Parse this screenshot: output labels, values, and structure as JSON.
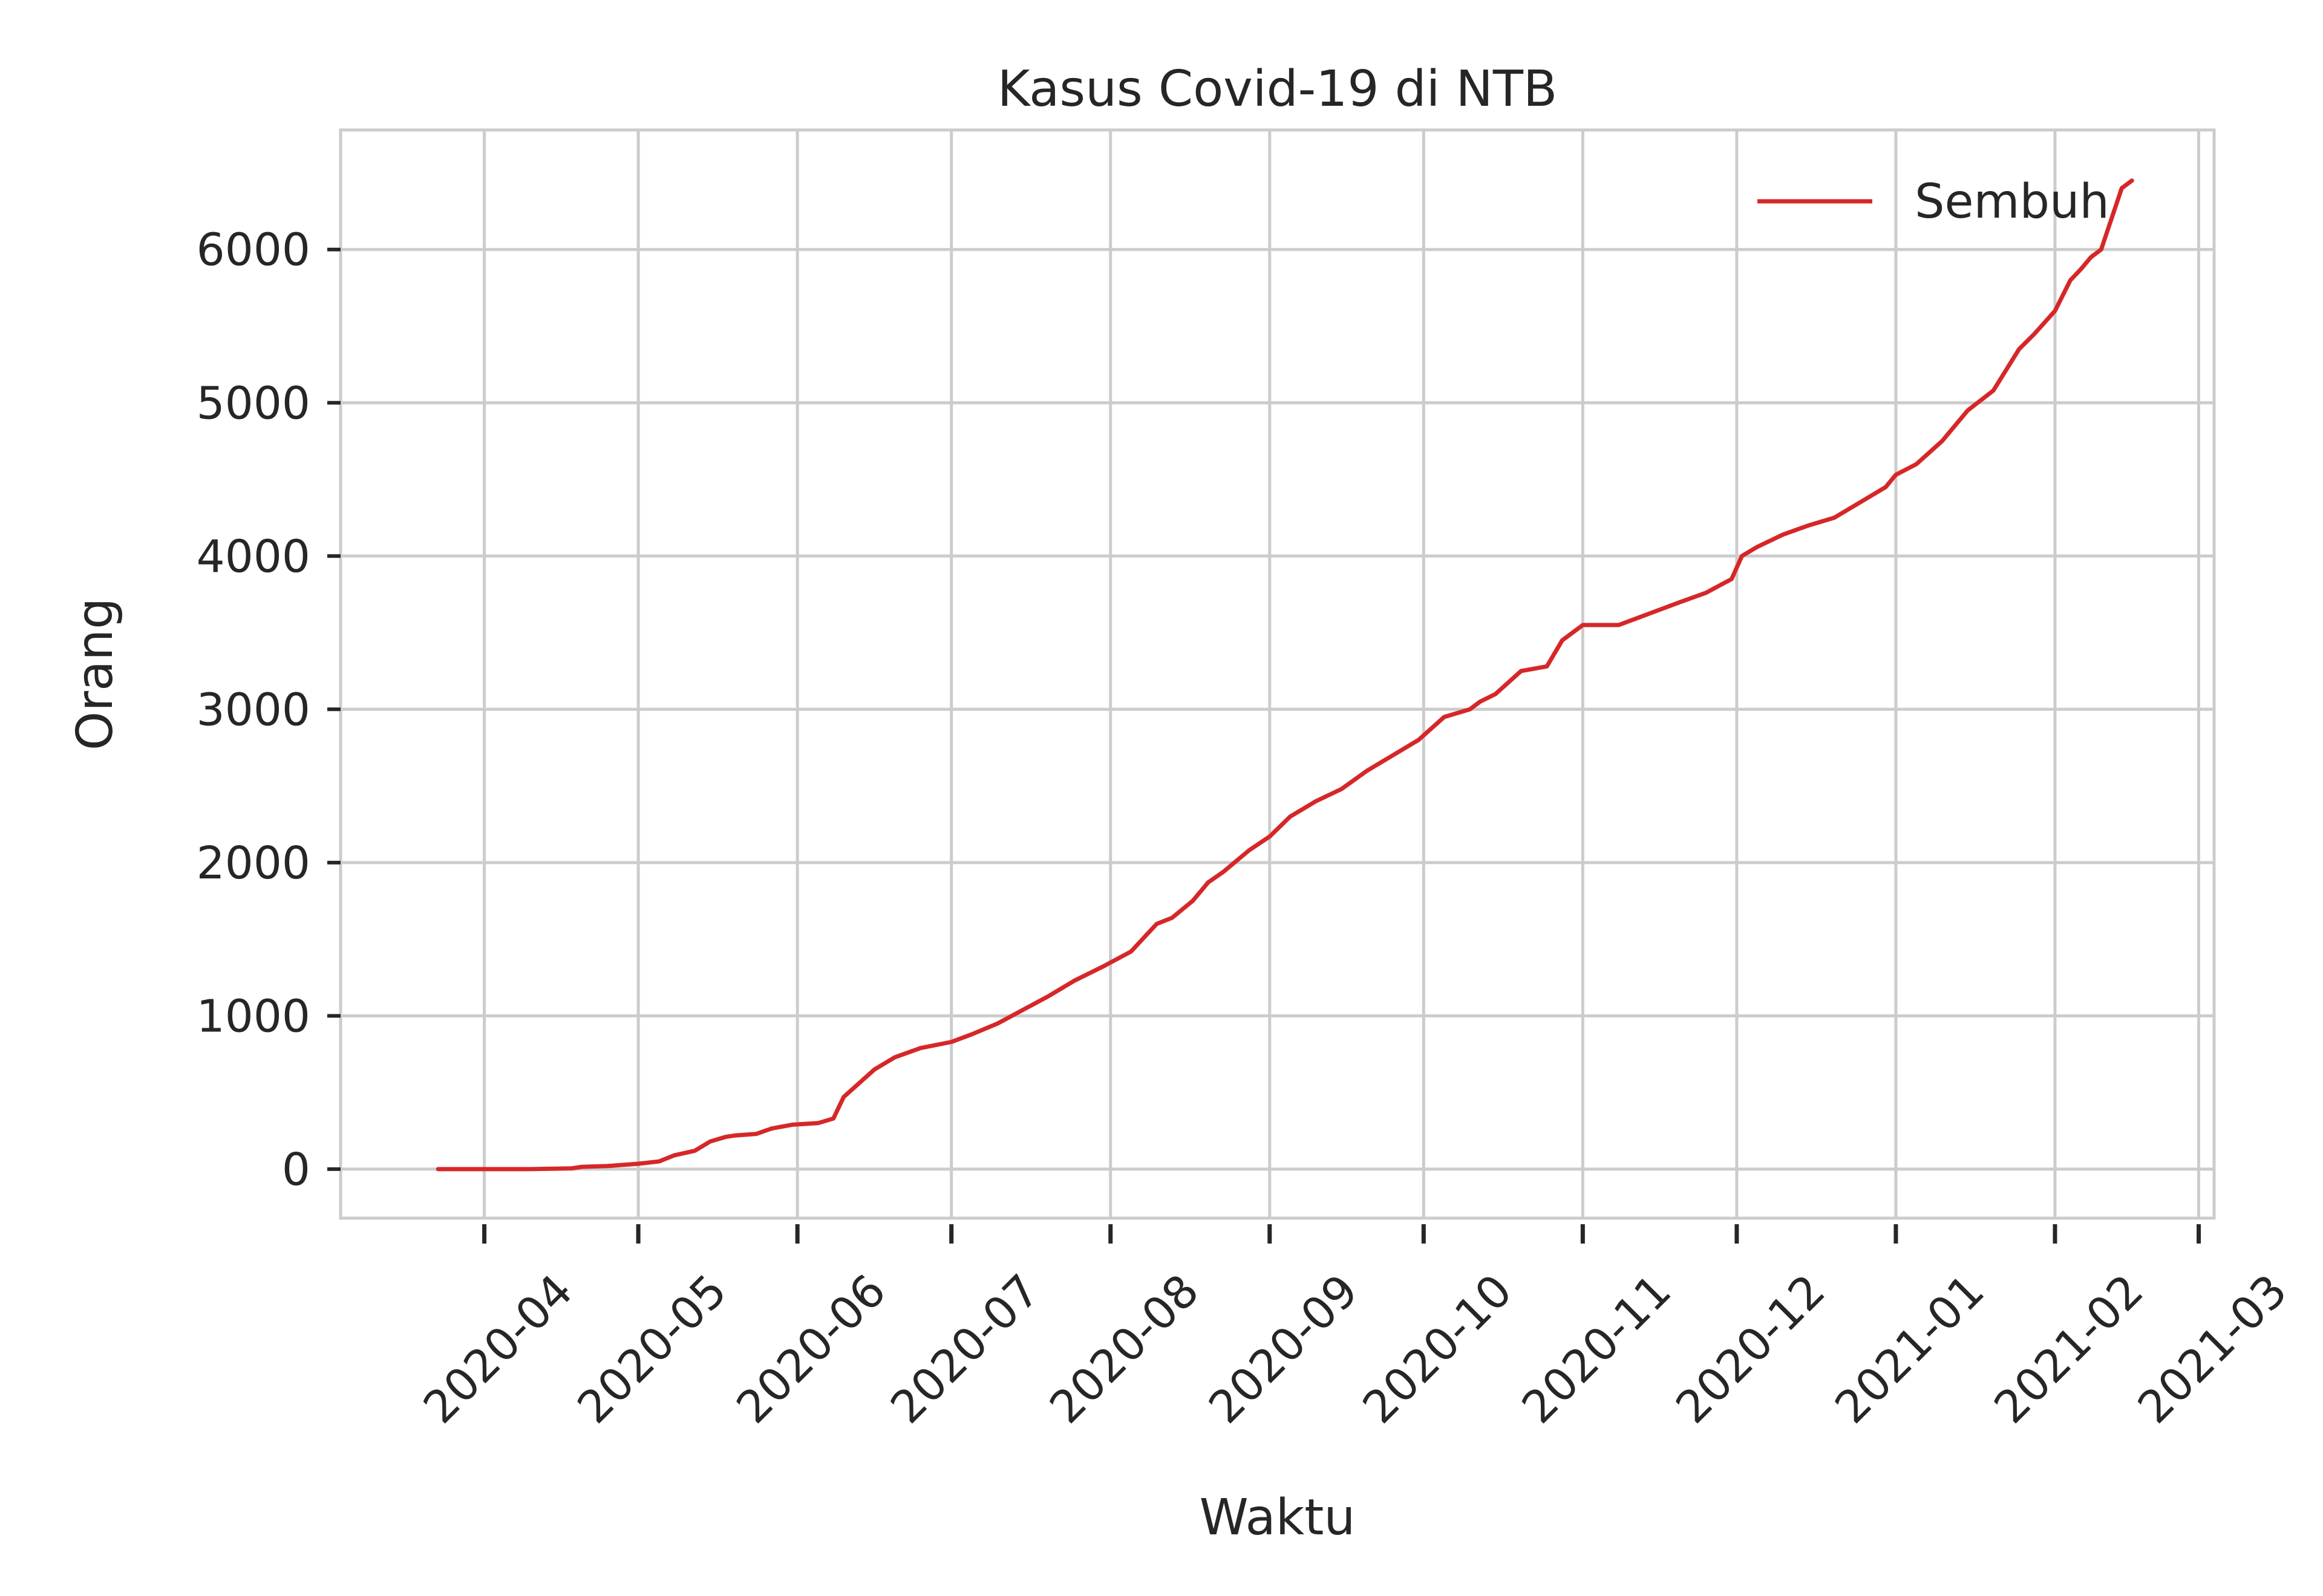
{
  "chart_data": {
    "type": "line",
    "title": "Kasus Covid-19 di NTB",
    "xlabel": "Waktu",
    "ylabel": "Orang",
    "x_tick_labels": [
      "2020-04",
      "2020-05",
      "2020-06",
      "2020-07",
      "2020-08",
      "2020-09",
      "2020-10",
      "2020-11",
      "2020-12",
      "2021-01",
      "2021-02",
      "2021-03"
    ],
    "y_ticks": [
      0,
      1000,
      2000,
      3000,
      4000,
      5000,
      6000
    ],
    "xlim": [
      "2020-03-04",
      "2021-03-04"
    ],
    "ylim": [
      -320,
      6780
    ],
    "grid": true,
    "legend_position": "top-right",
    "series": [
      {
        "name": "Sembuh",
        "color": "#d62728",
        "x": [
          "2020-03-23",
          "2020-04-01",
          "2020-04-10",
          "2020-04-18",
          "2020-04-20",
          "2020-04-25",
          "2020-05-01",
          "2020-05-05",
          "2020-05-08",
          "2020-05-12",
          "2020-05-15",
          "2020-05-18",
          "2020-05-20",
          "2020-05-24",
          "2020-05-27",
          "2020-05-31",
          "2020-06-05",
          "2020-06-08",
          "2020-06-10",
          "2020-06-13",
          "2020-06-16",
          "2020-06-20",
          "2020-06-25",
          "2020-07-01",
          "2020-07-05",
          "2020-07-10",
          "2020-07-15",
          "2020-07-20",
          "2020-07-25",
          "2020-07-31",
          "2020-08-05",
          "2020-08-10",
          "2020-08-13",
          "2020-08-17",
          "2020-08-20",
          "2020-08-23",
          "2020-08-28",
          "2020-09-01",
          "2020-09-05",
          "2020-09-10",
          "2020-09-15",
          "2020-09-20",
          "2020-09-25",
          "2020-09-30",
          "2020-10-05",
          "2020-10-10",
          "2020-10-12",
          "2020-10-15",
          "2020-10-20",
          "2020-10-25",
          "2020-10-28",
          "2020-11-01",
          "2020-11-03",
          "2020-11-06",
          "2020-11-08",
          "2020-11-12",
          "2020-11-16",
          "2020-11-20",
          "2020-11-25",
          "2020-11-30",
          "2020-12-02",
          "2020-12-05",
          "2020-12-10",
          "2020-12-15",
          "2020-12-20",
          "2020-12-25",
          "2020-12-30",
          "2021-01-01",
          "2021-01-05",
          "2021-01-10",
          "2021-01-15",
          "2021-01-20",
          "2021-01-25",
          "2021-01-28",
          "2021-02-01",
          "2021-02-04",
          "2021-02-06",
          "2021-02-08",
          "2021-02-10",
          "2021-02-12",
          "2021-02-14",
          "2021-02-16"
        ],
        "values": [
          0,
          0,
          0,
          5,
          15,
          20,
          35,
          50,
          90,
          120,
          180,
          210,
          220,
          230,
          265,
          290,
          300,
          330,
          470,
          560,
          650,
          730,
          790,
          830,
          880,
          950,
          1040,
          1130,
          1230,
          1330,
          1420,
          1600,
          1640,
          1750,
          1870,
          1940,
          2080,
          2170,
          2300,
          2400,
          2480,
          2600,
          2700,
          2800,
          2950,
          3000,
          3050,
          3100,
          3250,
          3280,
          3450,
          3550,
          3550,
          3550,
          3550,
          3600,
          3650,
          3700,
          3760,
          3850,
          4000,
          4060,
          4140,
          4200,
          4250,
          4350,
          4450,
          4530,
          4600,
          4750,
          4950,
          5080,
          5350,
          5450,
          5600,
          5800,
          5870,
          5950,
          6000,
          6200,
          6400,
          6450
        ]
      }
    ]
  }
}
